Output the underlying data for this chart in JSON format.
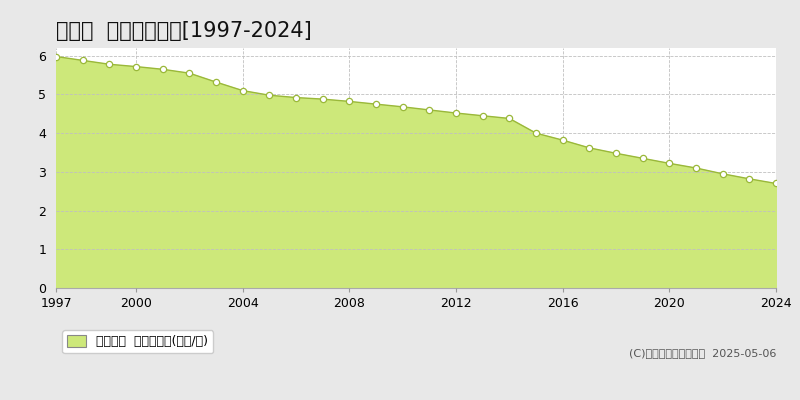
{
  "title": "伊仙町  基準地価推移[1997-2024]",
  "years": [
    1997,
    1998,
    1999,
    2000,
    2001,
    2002,
    2003,
    2004,
    2005,
    2006,
    2007,
    2008,
    2009,
    2010,
    2011,
    2012,
    2013,
    2014,
    2015,
    2016,
    2017,
    2018,
    2019,
    2020,
    2021,
    2022,
    2023,
    2024
  ],
  "values": [
    5.98,
    5.88,
    5.78,
    5.72,
    5.65,
    5.55,
    5.32,
    5.1,
    4.98,
    4.92,
    4.88,
    4.82,
    4.75,
    4.68,
    4.6,
    4.52,
    4.45,
    4.38,
    4.0,
    3.82,
    3.62,
    3.48,
    3.35,
    3.22,
    3.1,
    2.95,
    2.82,
    2.7
  ],
  "fill_color": "#cde87a",
  "line_color": "#9ab83a",
  "marker_face_color": "#ffffff",
  "marker_edge_color": "#9ab83a",
  "bg_color": "#e8e8e8",
  "plot_bg_color": "#ffffff",
  "grid_color": "#c0c0c0",
  "ylim": [
    0,
    6.2
  ],
  "yticks": [
    0,
    1,
    2,
    3,
    4,
    5,
    6
  ],
  "xticks": [
    1997,
    2000,
    2004,
    2008,
    2012,
    2016,
    2020,
    2024
  ],
  "legend_label": "基準地価  平均坪単価(万円/坪)",
  "legend_color": "#cde87a",
  "copyright_text": "(C)土地価格ドットコム  2025-05-06",
  "title_fontsize": 15,
  "tick_fontsize": 9,
  "legend_fontsize": 9,
  "copyright_fontsize": 8
}
